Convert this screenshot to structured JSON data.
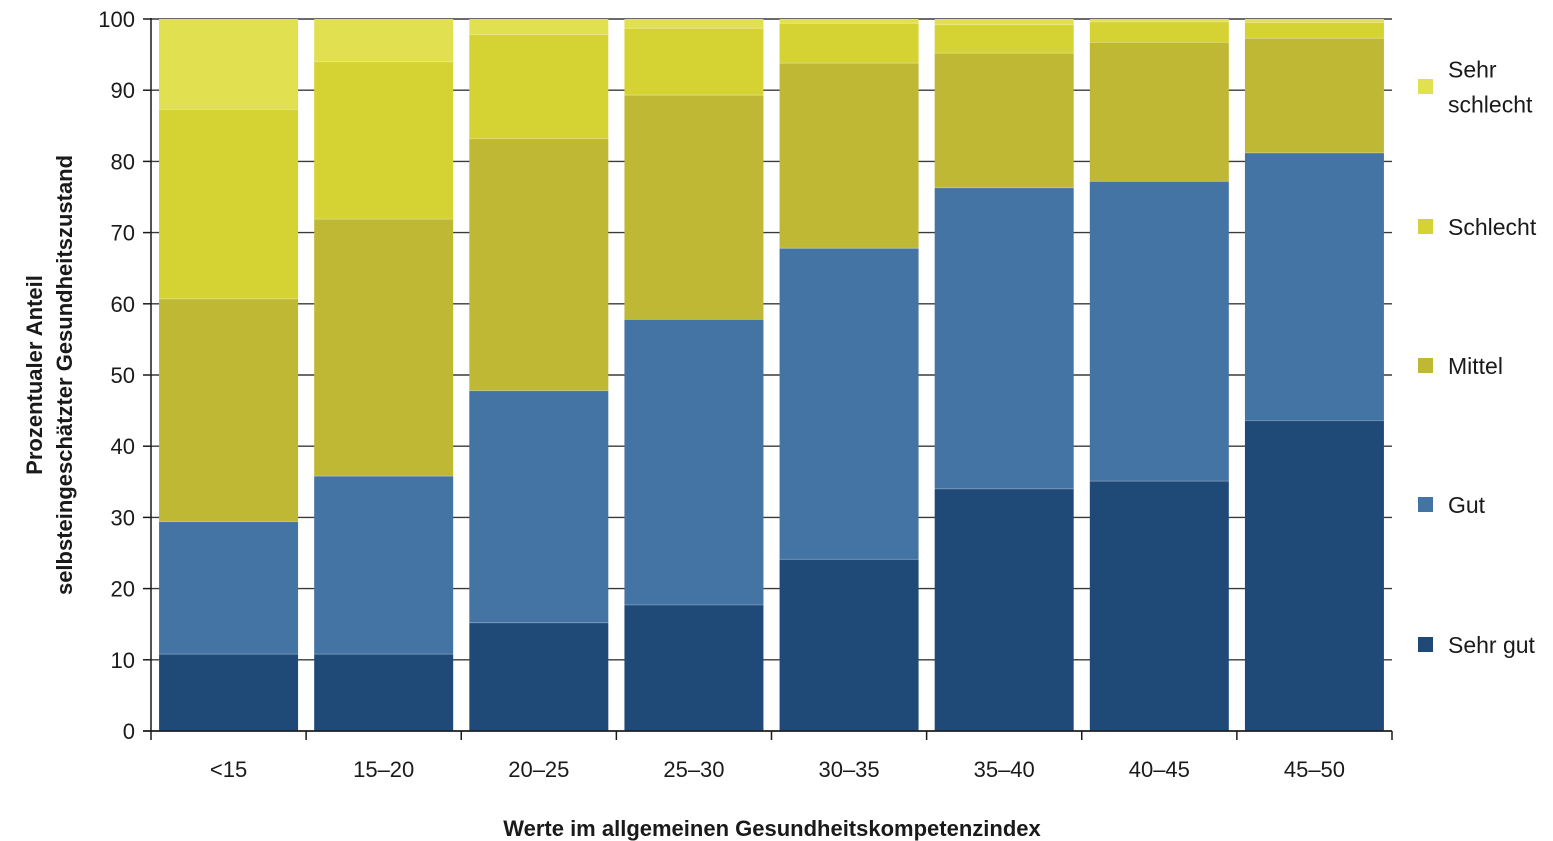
{
  "chart_data": {
    "type": "bar",
    "stacked": true,
    "categories": [
      "<15",
      "15–20",
      "20–25",
      "25–30",
      "30–35",
      "35–40",
      "40–45",
      "45–50"
    ],
    "series": [
      {
        "name": "Sehr gut",
        "color": "#1f4a78",
        "values": [
          10.8,
          10.8,
          15.2,
          17.7,
          24.1,
          34.0,
          35.1,
          43.6
        ]
      },
      {
        "name": "Gut",
        "color": "#4474a4",
        "values": [
          18.6,
          25.0,
          32.6,
          40.1,
          43.7,
          42.3,
          42.1,
          37.6
        ]
      },
      {
        "name": "Mittel",
        "color": "#bfb834",
        "values": [
          31.3,
          36.1,
          35.4,
          31.5,
          26.0,
          18.9,
          19.5,
          16.1
        ]
      },
      {
        "name": "Schlecht",
        "color": "#d5d233",
        "values": [
          26.6,
          22.1,
          14.6,
          9.4,
          5.6,
          4.0,
          2.9,
          2.2
        ]
      },
      {
        "name": "Sehr schlecht",
        "color": "#e1e050",
        "values": [
          12.7,
          6.0,
          2.2,
          1.3,
          0.6,
          0.8,
          0.4,
          0.5
        ]
      }
    ],
    "xlabel": "Werte im allgemeinen Gesundheitskompetenzindex",
    "ylabel": [
      "Prozentualer Anteil",
      "selbsteingeschätzter Gesundheitszustand"
    ],
    "ylim": [
      0,
      100
    ],
    "yticks": [
      0,
      10,
      20,
      30,
      40,
      50,
      60,
      70,
      80,
      90,
      100
    ],
    "grid": "horizontal",
    "legend": {
      "position": "right",
      "entries": [
        {
          "series": "Sehr schlecht",
          "lines": [
            "Sehr",
            "schlecht"
          ]
        },
        {
          "series": "Schlecht",
          "lines": [
            "Schlecht"
          ]
        },
        {
          "series": "Mittel",
          "lines": [
            "Mittel"
          ]
        },
        {
          "series": "Gut",
          "lines": [
            "Gut"
          ]
        },
        {
          "series": "Sehr gut",
          "lines": [
            "Sehr gut"
          ]
        }
      ]
    }
  }
}
